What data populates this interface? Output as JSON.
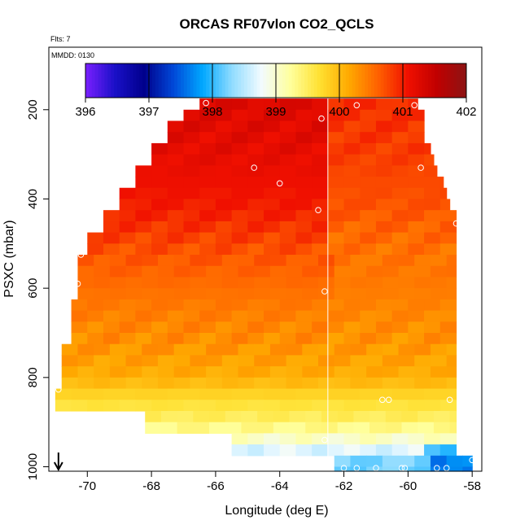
{
  "chart_data": {
    "type": "heatmap",
    "title": "ORCAS RF07vlon CO2_QCLS",
    "flights_label": "Flts: 7",
    "date_label": "MMDD: 0130",
    "xlabel": "Longitude (deg E)",
    "ylabel": "PSXC (mbar)",
    "xlim": [
      -71.2,
      -57.7
    ],
    "ylim": [
      1010,
      60
    ],
    "x_ticks": [
      -70,
      -68,
      -66,
      -64,
      -62,
      -60,
      -58
    ],
    "y_ticks": [
      200,
      400,
      600,
      800,
      1000
    ],
    "colorbar": {
      "ticks": [
        396,
        397,
        398,
        399,
        400,
        401,
        402
      ],
      "range": [
        396,
        402
      ],
      "colors": [
        "#7a20ff",
        "#1a10c8",
        "#00008c",
        "#0048d8",
        "#00a8ff",
        "#90dcff",
        "#f2fbff",
        "#ffff9c",
        "#ffe030",
        "#ffa800",
        "#ff6000",
        "#f01000",
        "#c00000",
        "#8c1414"
      ]
    },
    "reference_longitude": -62.5,
    "grid_x_step": 0.5,
    "grid_p_step": 25,
    "field": {
      "lon_center": -62.5,
      "mean_by_pressure": [
        {
          "p": 180,
          "v": 401.1
        },
        {
          "p": 300,
          "v": 401.0
        },
        {
          "p": 420,
          "v": 400.85
        },
        {
          "p": 520,
          "v": 400.6
        },
        {
          "p": 620,
          "v": 400.45
        },
        {
          "p": 720,
          "v": 400.3
        },
        {
          "p": 800,
          "v": 400.1
        },
        {
          "p": 850,
          "v": 399.7
        },
        {
          "p": 900,
          "v": 399.45
        },
        {
          "p": 950,
          "v": 398.9
        },
        {
          "p": 990,
          "v": 398.2
        }
      ],
      "west_east_offset_by_pressure": [
        {
          "p": 180,
          "v": 0.35
        },
        {
          "p": 350,
          "v": 0.35
        },
        {
          "p": 450,
          "v": 0.3
        },
        {
          "p": 600,
          "v": 0.08
        },
        {
          "p": 800,
          "v": 0.0
        },
        {
          "p": 1000,
          "v": 0.0
        }
      ]
    },
    "coverage": [
      {
        "p_top": 175,
        "p_bot": 200,
        "lon_min": -66.5,
        "lon_max": -59.7
      },
      {
        "p_top": 200,
        "p_bot": 225,
        "lon_min": -67.0,
        "lon_max": -59.5
      },
      {
        "p_top": 225,
        "p_bot": 275,
        "lon_min": -67.5,
        "lon_max": -59.5
      },
      {
        "p_top": 275,
        "p_bot": 300,
        "lon_min": -68.0,
        "lon_max": -59.3
      },
      {
        "p_top": 300,
        "p_bot": 325,
        "lon_min": -68.0,
        "lon_max": -59.2
      },
      {
        "p_top": 325,
        "p_bot": 350,
        "lon_min": -68.5,
        "lon_max": -59.1
      },
      {
        "p_top": 350,
        "p_bot": 375,
        "lon_min": -68.5,
        "lon_max": -58.9
      },
      {
        "p_top": 375,
        "p_bot": 400,
        "lon_min": -69.0,
        "lon_max": -58.8
      },
      {
        "p_top": 400,
        "p_bot": 425,
        "lon_min": -69.0,
        "lon_max": -58.7
      },
      {
        "p_top": 425,
        "p_bot": 450,
        "lon_min": -69.5,
        "lon_max": -58.5
      },
      {
        "p_top": 450,
        "p_bot": 475,
        "lon_min": -69.5,
        "lon_max": -58.5
      },
      {
        "p_top": 475,
        "p_bot": 525,
        "lon_min": -70.0,
        "lon_max": -58.5
      },
      {
        "p_top": 525,
        "p_bot": 625,
        "lon_min": -70.3,
        "lon_max": -58.5
      },
      {
        "p_top": 625,
        "p_bot": 725,
        "lon_min": -70.5,
        "lon_max": -58.5
      },
      {
        "p_top": 725,
        "p_bot": 825,
        "lon_min": -70.8,
        "lon_max": -58.5
      },
      {
        "p_top": 825,
        "p_bot": 875,
        "lon_min": -71.0,
        "lon_max": -58.5
      },
      {
        "p_top": 875,
        "p_bot": 925,
        "lon_min": -68.2,
        "lon_max": -58.5
      },
      {
        "p_top": 925,
        "p_bot": 975,
        "lon_min": -65.5,
        "lon_max": -58.5
      },
      {
        "p_top": 975,
        "p_bot": 1010,
        "lon_min": -62.3,
        "lon_max": -58.0
      }
    ],
    "sample_points": [
      {
        "lon": -66.3,
        "p": 185
      },
      {
        "lon": -62.7,
        "p": 220
      },
      {
        "lon": -61.6,
        "p": 190
      },
      {
        "lon": -59.8,
        "p": 190
      },
      {
        "lon": -64.8,
        "p": 330
      },
      {
        "lon": -64.0,
        "p": 365
      },
      {
        "lon": -59.6,
        "p": 330
      },
      {
        "lon": -62.8,
        "p": 425
      },
      {
        "lon": -58.5,
        "p": 455
      },
      {
        "lon": -70.2,
        "p": 525
      },
      {
        "lon": -70.3,
        "p": 590
      },
      {
        "lon": -62.6,
        "p": 607
      },
      {
        "lon": -70.9,
        "p": 827
      },
      {
        "lon": -60.8,
        "p": 850
      },
      {
        "lon": -60.6,
        "p": 850
      },
      {
        "lon": -58.7,
        "p": 850
      },
      {
        "lon": -62.6,
        "p": 940
      },
      {
        "lon": -62.8,
        "p": 1003
      },
      {
        "lon": -62.0,
        "p": 1003
      },
      {
        "lon": -61.6,
        "p": 1003
      },
      {
        "lon": -61.0,
        "p": 1003
      },
      {
        "lon": -60.2,
        "p": 1003
      },
      {
        "lon": -60.1,
        "p": 1003
      },
      {
        "lon": -59.1,
        "p": 1003
      },
      {
        "lon": -58.8,
        "p": 1003
      },
      {
        "lon": -58.0,
        "p": 985
      }
    ],
    "marker_arrow_longitude": -70.9
  }
}
